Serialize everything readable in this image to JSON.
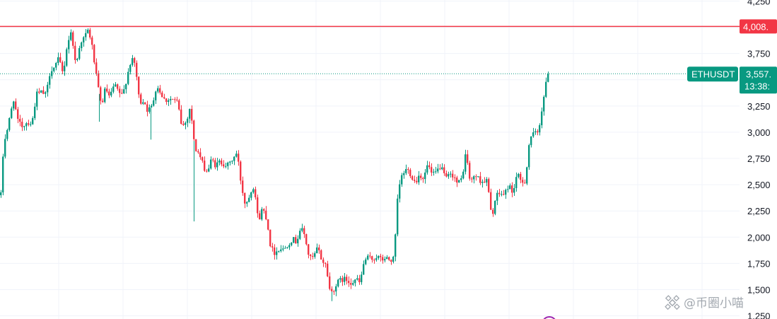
{
  "chart_data": {
    "type": "candlestick",
    "title": "",
    "xlabel": "",
    "ylabel": "",
    "ylim": [
      1220,
      4260
    ],
    "y_ticks": [
      1250,
      1500,
      1750,
      2000,
      2250,
      2500,
      2750,
      3000,
      3250,
      3500,
      3750,
      4000,
      4250
    ],
    "y_tick_labels": [
      "1,250",
      "1,500",
      "1,750",
      "2,000",
      "2,250",
      "2,500",
      "2,750",
      "3,000",
      "3,250",
      "3,500",
      "3,750",
      "4,000",
      "4,250"
    ],
    "horizontal_line": {
      "value": 4008,
      "label": "4,008.",
      "color": "#f23645"
    },
    "last_price": {
      "value": 3557,
      "label": "3,557.",
      "countdown": "13:38:",
      "color": "#089981"
    },
    "symbol": "ETHUSDT",
    "colors": {
      "up": "#089981",
      "down": "#f23645",
      "grid": "#f0f3fa"
    },
    "grid": true,
    "path": [
      [
        0,
        2400
      ],
      [
        4,
        2900
      ],
      [
        10,
        3050
      ],
      [
        18,
        3320
      ],
      [
        24,
        3100
      ],
      [
        30,
        3060
      ],
      [
        38,
        3100
      ],
      [
        44,
        3080
      ],
      [
        50,
        3360
      ],
      [
        58,
        3380
      ],
      [
        64,
        3350
      ],
      [
        70,
        3600
      ],
      [
        76,
        3620
      ],
      [
        82,
        3700
      ],
      [
        88,
        3550
      ],
      [
        94,
        3850
      ],
      [
        100,
        3960
      ],
      [
        106,
        3620
      ],
      [
        112,
        3860
      ],
      [
        118,
        3900
      ],
      [
        124,
        3980
      ],
      [
        130,
        3780
      ],
      [
        136,
        3480
      ],
      [
        142,
        3250
      ],
      [
        148,
        3420
      ],
      [
        154,
        3320
      ],
      [
        160,
        3450
      ],
      [
        166,
        3390
      ],
      [
        172,
        3340
      ],
      [
        178,
        3520
      ],
      [
        184,
        3690
      ],
      [
        190,
        3650
      ],
      [
        196,
        3280
      ],
      [
        202,
        3310
      ],
      [
        208,
        3200
      ],
      [
        214,
        3250
      ],
      [
        220,
        3450
      ],
      [
        226,
        3380
      ],
      [
        232,
        3300
      ],
      [
        238,
        3320
      ],
      [
        244,
        3310
      ],
      [
        250,
        3280
      ],
      [
        256,
        3050
      ],
      [
        262,
        3100
      ],
      [
        268,
        3250
      ],
      [
        274,
        2850
      ],
      [
        280,
        2800
      ],
      [
        286,
        2680
      ],
      [
        292,
        2620
      ],
      [
        298,
        2740
      ],
      [
        304,
        2680
      ],
      [
        310,
        2720
      ],
      [
        316,
        2700
      ],
      [
        322,
        2680
      ],
      [
        328,
        2750
      ],
      [
        334,
        2800
      ],
      [
        340,
        2500
      ],
      [
        346,
        2300
      ],
      [
        352,
        2420
      ],
      [
        358,
        2500
      ],
      [
        364,
        2150
      ],
      [
        370,
        2280
      ],
      [
        376,
        2180
      ],
      [
        382,
        1890
      ],
      [
        388,
        1850
      ],
      [
        394,
        1900
      ],
      [
        400,
        1880
      ],
      [
        406,
        1940
      ],
      [
        412,
        1980
      ],
      [
        418,
        1960
      ],
      [
        424,
        2090
      ],
      [
        430,
        2010
      ],
      [
        436,
        1800
      ],
      [
        442,
        1800
      ],
      [
        448,
        1900
      ],
      [
        454,
        1780
      ],
      [
        460,
        1730
      ],
      [
        466,
        1460
      ],
      [
        472,
        1520
      ],
      [
        478,
        1580
      ],
      [
        484,
        1600
      ],
      [
        490,
        1590
      ],
      [
        496,
        1570
      ],
      [
        502,
        1600
      ],
      [
        508,
        1560
      ],
      [
        514,
        1780
      ],
      [
        520,
        1800
      ],
      [
        526,
        1790
      ],
      [
        532,
        1820
      ],
      [
        538,
        1780
      ],
      [
        544,
        1800
      ],
      [
        550,
        1780
      ],
      [
        556,
        1790
      ],
      [
        562,
        2450
      ],
      [
        568,
        2600
      ],
      [
        574,
        2650
      ],
      [
        580,
        2600
      ],
      [
        586,
        2520
      ],
      [
        592,
        2600
      ],
      [
        598,
        2560
      ],
      [
        604,
        2700
      ],
      [
        610,
        2580
      ],
      [
        616,
        2620
      ],
      [
        622,
        2680
      ],
      [
        628,
        2560
      ],
      [
        634,
        2580
      ],
      [
        640,
        2600
      ],
      [
        646,
        2500
      ],
      [
        652,
        2560
      ],
      [
        658,
        2820
      ],
      [
        664,
        2500
      ],
      [
        670,
        2600
      ],
      [
        676,
        2550
      ],
      [
        682,
        2530
      ],
      [
        688,
        2540
      ],
      [
        694,
        2180
      ],
      [
        700,
        2380
      ],
      [
        706,
        2420
      ],
      [
        712,
        2400
      ],
      [
        718,
        2500
      ],
      [
        724,
        2420
      ],
      [
        730,
        2600
      ],
      [
        736,
        2520
      ],
      [
        742,
        2540
      ],
      [
        748,
        2950
      ],
      [
        754,
        2980
      ],
      [
        760,
        3000
      ],
      [
        766,
        3260
      ],
      [
        770,
        3420
      ],
      [
        774,
        3557
      ]
    ],
    "up_down_path": [
      [
        0,
        2400
      ],
      [
        4,
        2900
      ],
      [
        10,
        3050
      ],
      [
        18,
        3320
      ],
      [
        24,
        3100
      ],
      [
        30,
        3060
      ],
      [
        38,
        3100
      ],
      [
        44,
        3080
      ],
      [
        50,
        3360
      ],
      [
        58,
        3380
      ],
      [
        64,
        3350
      ],
      [
        70,
        3600
      ],
      [
        76,
        3620
      ],
      [
        82,
        3700
      ],
      [
        88,
        3550
      ],
      [
        94,
        3850
      ],
      [
        100,
        3960
      ],
      [
        106,
        3620
      ],
      [
        112,
        3860
      ],
      [
        118,
        3900
      ],
      [
        124,
        3980
      ],
      [
        130,
        3780
      ],
      [
        136,
        3480
      ],
      [
        142,
        3250
      ],
      [
        148,
        3420
      ],
      [
        154,
        3320
      ],
      [
        160,
        3450
      ],
      [
        166,
        3390
      ],
      [
        172,
        3340
      ],
      [
        178,
        3520
      ],
      [
        184,
        3690
      ],
      [
        190,
        3650
      ],
      [
        196,
        3280
      ],
      [
        202,
        3310
      ],
      [
        208,
        3200
      ],
      [
        214,
        3250
      ],
      [
        220,
        3450
      ],
      [
        226,
        3380
      ],
      [
        232,
        3300
      ],
      [
        238,
        3320
      ],
      [
        244,
        3310
      ],
      [
        250,
        3280
      ],
      [
        256,
        3050
      ],
      [
        262,
        3100
      ],
      [
        268,
        3250
      ],
      [
        274,
        2850
      ],
      [
        280,
        2800
      ],
      [
        286,
        2680
      ],
      [
        292,
        2620
      ],
      [
        298,
        2740
      ],
      [
        304,
        2680
      ],
      [
        310,
        2720
      ],
      [
        316,
        2700
      ],
      [
        322,
        2680
      ],
      [
        328,
        2750
      ],
      [
        334,
        2800
      ],
      [
        340,
        2500
      ],
      [
        346,
        2300
      ],
      [
        352,
        2420
      ],
      [
        358,
        2500
      ],
      [
        364,
        2150
      ],
      [
        370,
        2280
      ],
      [
        376,
        2180
      ],
      [
        382,
        1890
      ],
      [
        388,
        1850
      ],
      [
        394,
        1900
      ],
      [
        400,
        1880
      ],
      [
        406,
        1940
      ],
      [
        412,
        1980
      ],
      [
        418,
        1960
      ],
      [
        424,
        2090
      ],
      [
        430,
        2010
      ],
      [
        436,
        1800
      ],
      [
        442,
        1800
      ],
      [
        448,
        1900
      ],
      [
        454,
        1780
      ],
      [
        460,
        1730
      ],
      [
        466,
        1460
      ],
      [
        472,
        1520
      ],
      [
        478,
        1580
      ],
      [
        484,
        1600
      ],
      [
        490,
        1590
      ],
      [
        496,
        1570
      ],
      [
        502,
        1600
      ],
      [
        508,
        1560
      ],
      [
        514,
        1780
      ],
      [
        520,
        1800
      ],
      [
        526,
        1790
      ],
      [
        532,
        1820
      ],
      [
        538,
        1780
      ],
      [
        544,
        1800
      ],
      [
        550,
        1780
      ],
      [
        556,
        1790
      ],
      [
        562,
        2450
      ],
      [
        568,
        2600
      ],
      [
        574,
        2650
      ],
      [
        580,
        2600
      ],
      [
        586,
        2520
      ],
      [
        592,
        2600
      ],
      [
        598,
        2560
      ],
      [
        604,
        2700
      ],
      [
        610,
        2580
      ],
      [
        616,
        2620
      ],
      [
        622,
        2680
      ],
      [
        628,
        2560
      ],
      [
        634,
        2580
      ],
      [
        640,
        2600
      ],
      [
        646,
        2500
      ],
      [
        652,
        2560
      ],
      [
        658,
        2820
      ],
      [
        664,
        2500
      ],
      [
        670,
        2600
      ],
      [
        676,
        2550
      ],
      [
        682,
        2530
      ],
      [
        688,
        2540
      ],
      [
        694,
        2180
      ],
      [
        700,
        2380
      ],
      [
        706,
        2420
      ],
      [
        712,
        2400
      ],
      [
        718,
        2500
      ],
      [
        724,
        2420
      ],
      [
        730,
        2600
      ],
      [
        736,
        2520
      ],
      [
        742,
        2540
      ],
      [
        748,
        2950
      ],
      [
        754,
        2980
      ],
      [
        760,
        3000
      ],
      [
        766,
        3260
      ],
      [
        770,
        3420
      ],
      [
        774,
        3557
      ]
    ]
  },
  "watermark": {
    "text": "@币圈小喵",
    "icon": "binance-logo-icon"
  }
}
